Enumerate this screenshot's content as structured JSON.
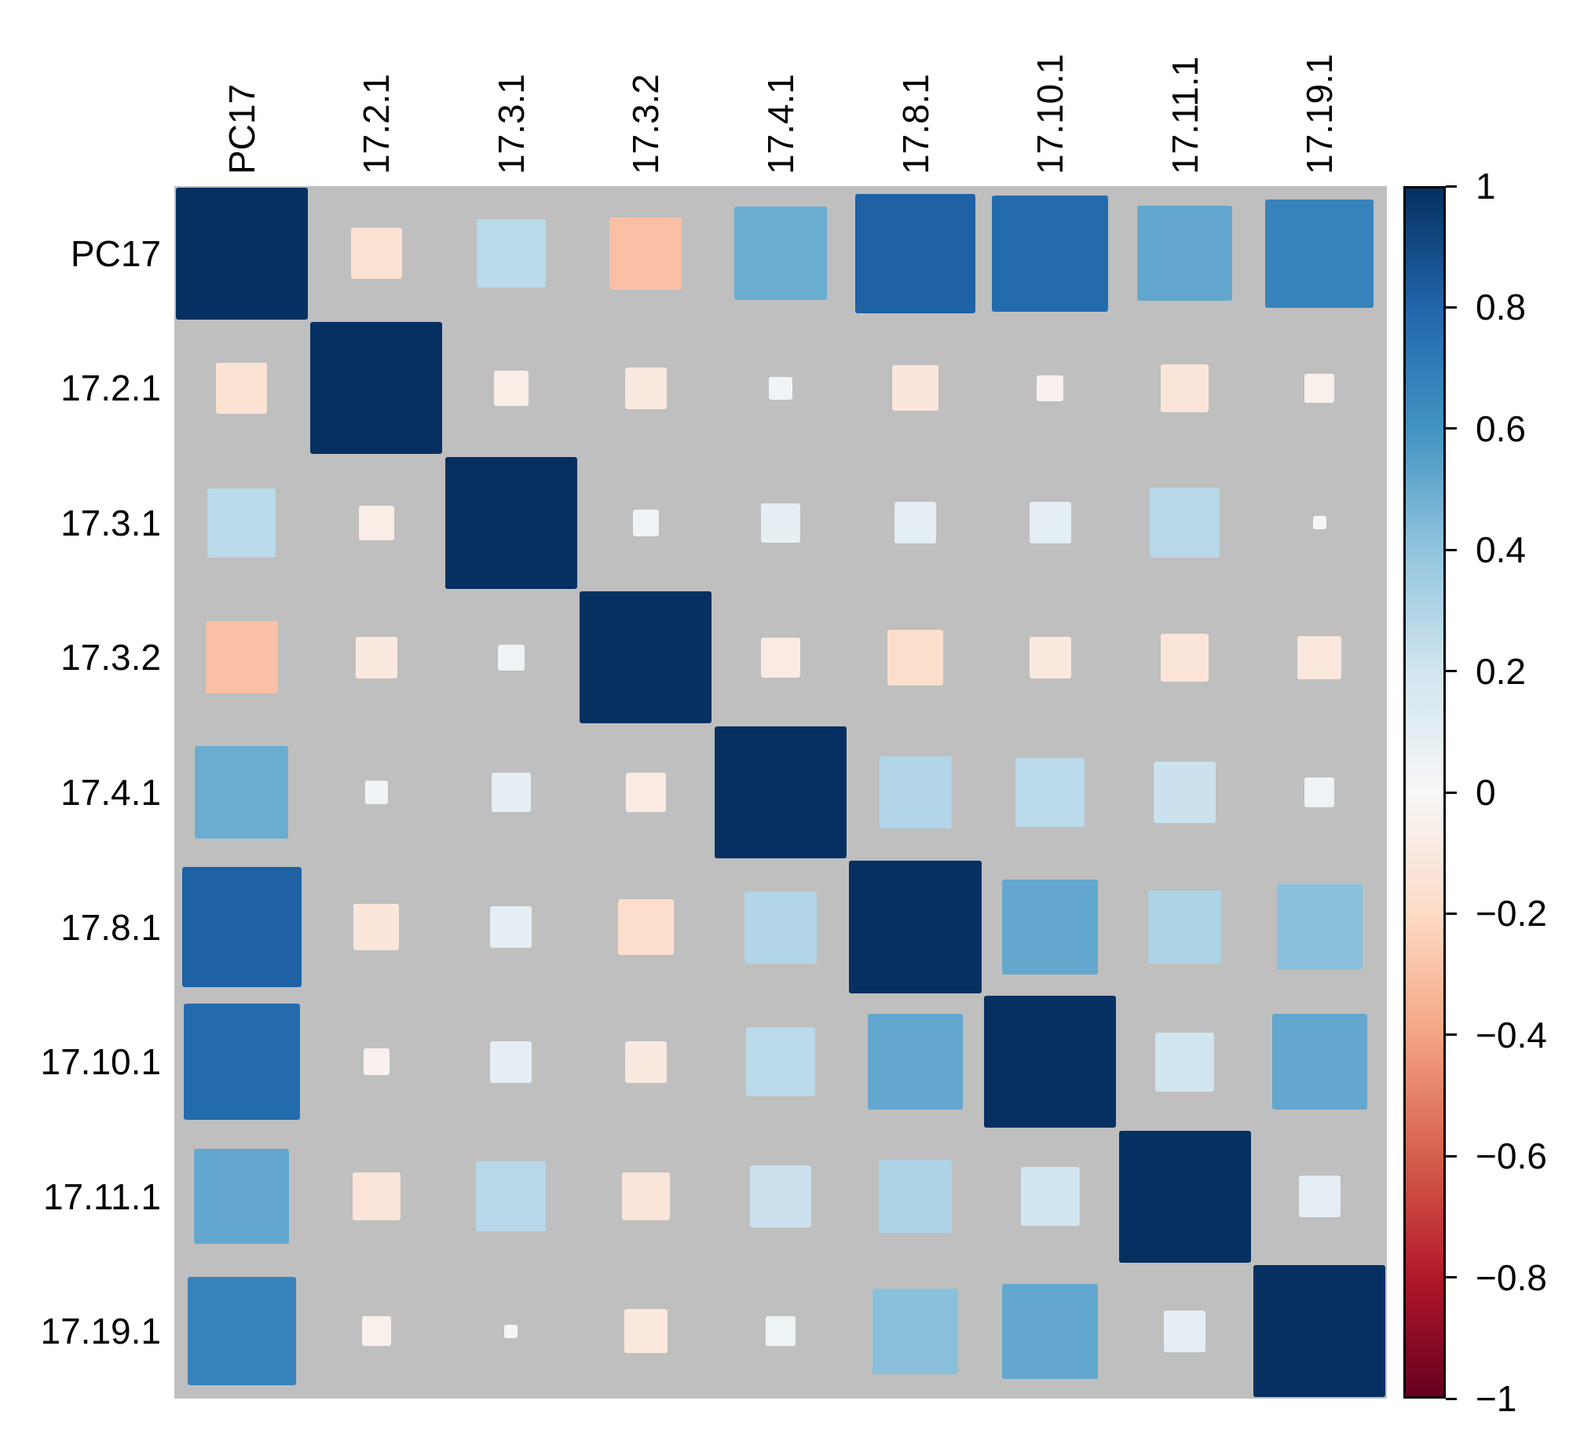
{
  "figure": {
    "background": "#ffffff",
    "panel_background": "#bfbfbf",
    "label_color": "#000000"
  },
  "chart_data": {
    "type": "heatmap",
    "subtype": "correlation-matrix",
    "title": "",
    "encoding": "square size proportional to sqrt(|r|), color from RdBu diverging colormap, full symmetric matrix shown, diagonal = 1",
    "variables": [
      "PC17",
      "17.2.1",
      "17.3.1",
      "17.3.2",
      "17.4.1",
      "17.8.1",
      "17.10.1",
      "17.11.1",
      "17.19.1"
    ],
    "matrix": [
      [
        1.0,
        -0.15,
        0.27,
        -0.3,
        0.5,
        0.82,
        0.78,
        0.52,
        0.67
      ],
      [
        -0.15,
        1.0,
        -0.07,
        -0.1,
        0.03,
        -0.12,
        -0.04,
        -0.13,
        -0.05
      ],
      [
        0.27,
        -0.07,
        1.0,
        0.04,
        0.09,
        0.1,
        0.1,
        0.28,
        0.01
      ],
      [
        -0.3,
        -0.1,
        0.04,
        1.0,
        -0.09,
        -0.18,
        -0.1,
        -0.13,
        -0.11
      ],
      [
        0.5,
        0.03,
        0.09,
        -0.09,
        1.0,
        0.3,
        0.27,
        0.22,
        0.05
      ],
      [
        0.82,
        -0.12,
        0.1,
        -0.18,
        0.3,
        1.0,
        0.52,
        0.31,
        0.42
      ],
      [
        0.78,
        -0.04,
        0.1,
        -0.1,
        0.27,
        0.52,
        1.0,
        0.2,
        0.52
      ],
      [
        0.52,
        -0.13,
        0.28,
        -0.13,
        0.22,
        0.31,
        0.2,
        1.0,
        0.1
      ],
      [
        0.67,
        -0.05,
        0.01,
        -0.11,
        0.05,
        0.42,
        0.52,
        0.1,
        1.0
      ]
    ],
    "value_range": [
      -1,
      1
    ],
    "grid": false,
    "legend_position": "right",
    "colormap_stops": [
      {
        "value": -1.0,
        "color": "#67001f"
      },
      {
        "value": -0.8,
        "color": "#b2182b"
      },
      {
        "value": -0.6,
        "color": "#d6604d"
      },
      {
        "value": -0.4,
        "color": "#f4a582"
      },
      {
        "value": -0.2,
        "color": "#fddbc7"
      },
      {
        "value": 0.0,
        "color": "#f7f7f7"
      },
      {
        "value": 0.2,
        "color": "#d1e5f0"
      },
      {
        "value": 0.4,
        "color": "#92c5de"
      },
      {
        "value": 0.6,
        "color": "#4393c3"
      },
      {
        "value": 0.8,
        "color": "#2166ac"
      },
      {
        "value": 1.0,
        "color": "#053061"
      }
    ],
    "colorbar_ticks": [
      {
        "value": 1.0,
        "label": "1"
      },
      {
        "value": 0.8,
        "label": "0.8"
      },
      {
        "value": 0.6,
        "label": "0.6"
      },
      {
        "value": 0.4,
        "label": "0.4"
      },
      {
        "value": 0.2,
        "label": "0.2"
      },
      {
        "value": 0.0,
        "label": "0"
      },
      {
        "value": -0.2,
        "label": "−0.2"
      },
      {
        "value": -0.4,
        "label": "−0.4"
      },
      {
        "value": -0.6,
        "label": "−0.6"
      },
      {
        "value": -0.8,
        "label": "−0.8"
      },
      {
        "value": -1.0,
        "label": "−1"
      }
    ]
  }
}
